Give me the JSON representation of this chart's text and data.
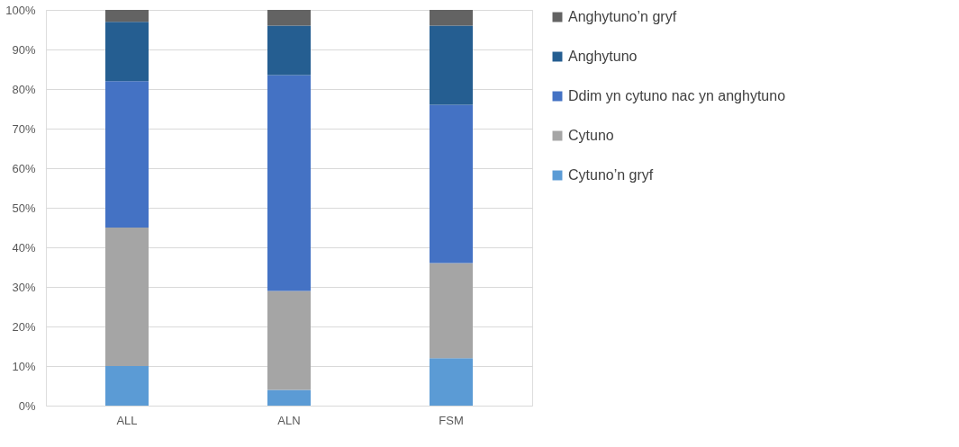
{
  "chart_data": {
    "type": "bar",
    "stacked": true,
    "categories": [
      "ALL",
      "ALN",
      "FSM"
    ],
    "series": [
      {
        "name": "Cytuno’n gryf",
        "color": "#5b9bd5",
        "values": [
          10,
          4,
          12
        ]
      },
      {
        "name": "Cytuno",
        "color": "#a5a5a5",
        "values": [
          35,
          25,
          24
        ]
      },
      {
        "name": "Ddim yn cytuno nac yn anghytuno",
        "color": "#4472c4",
        "values": [
          37,
          54.5,
          40
        ]
      },
      {
        "name": "Anghytuno",
        "color": "#255e91",
        "values": [
          15,
          12.5,
          20
        ]
      },
      {
        "name": "Anghytuno’n gryf",
        "color": "#636363",
        "values": [
          3,
          4,
          4
        ]
      }
    ],
    "ylim": [
      0,
      100
    ],
    "yticks": [
      {
        "value": 0,
        "label": "0%"
      },
      {
        "value": 10,
        "label": "10%"
      },
      {
        "value": 20,
        "label": "20%"
      },
      {
        "value": 30,
        "label": "30%"
      },
      {
        "value": 40,
        "label": "40%"
      },
      {
        "value": 50,
        "label": "50%"
      },
      {
        "value": 60,
        "label": "60%"
      },
      {
        "value": 70,
        "label": "70%"
      },
      {
        "value": 80,
        "label": "80%"
      },
      {
        "value": 90,
        "label": "90%"
      },
      {
        "value": 100,
        "label": "100%"
      }
    ],
    "grid": "y",
    "legend": "right"
  }
}
